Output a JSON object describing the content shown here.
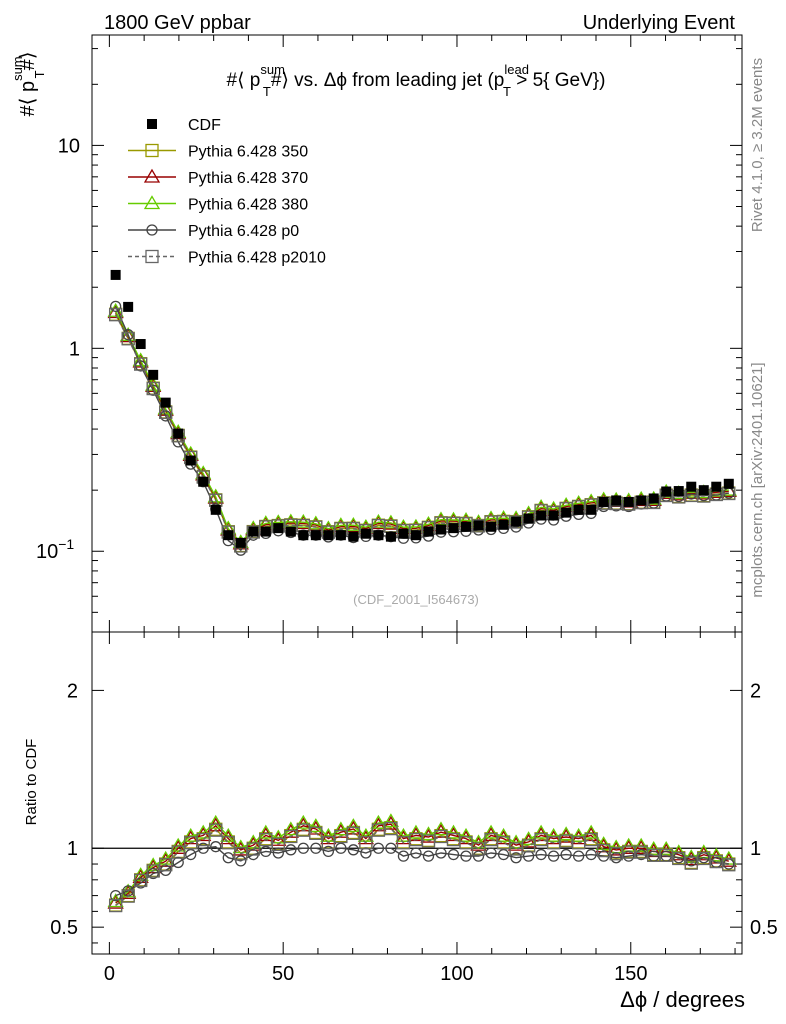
{
  "header": {
    "left_label": "1800 GeV ppbar",
    "right_label": "Underlying Event"
  },
  "side_labels": {
    "rivet": "Rivet 4.1.0, ≥ 3.2M events",
    "mcplots": "mcplots.cern.ch [arXiv:2401.10621]"
  },
  "analysis_id": "(CDF_2001_I564673)",
  "chart_data": [
    {
      "type": "scatter",
      "scale": "log",
      "title": "#⟨ p_T^sum #⟩ vs. Δϕ from leading jet (p_T^lead > 5{ GeV})",
      "title_parts": {
        "prefix": "#⟨ p",
        "sup1": "sum",
        "sub1": "T",
        "mid": "#⟩ vs. Δϕ from leading jet  (p",
        "sup2": "lead",
        "sub2": "T",
        "suffix": " > 5{ GeV})"
      },
      "ylabel": "#⟨ p_T^sum #⟩",
      "ylabel_parts": {
        "prefix": "#⟨ p",
        "sup": "sum",
        "sub": "T",
        "suffix": "#⟩"
      },
      "xlim": [
        -5,
        182
      ],
      "ylim": [
        0.04,
        35
      ],
      "yticks": [
        {
          "value": 0.1,
          "base": "10",
          "exp": "−1"
        },
        {
          "value": 1,
          "label": "1"
        },
        {
          "value": 10,
          "label": "10"
        }
      ],
      "legend": [
        {
          "name": "CDF",
          "color": "#000000",
          "marker": "filled-square",
          "line": "none"
        },
        {
          "name": "Pythia 6.428 350",
          "color": "#999900",
          "marker": "open-square",
          "line": "solid"
        },
        {
          "name": "Pythia 6.428 370",
          "color": "#990000",
          "marker": "open-triangle",
          "line": "solid"
        },
        {
          "name": "Pythia 6.428 380",
          "color": "#66cc00",
          "marker": "open-triangle",
          "line": "solid"
        },
        {
          "name": "Pythia 6.428 p0",
          "color": "#444444",
          "marker": "open-circle",
          "line": "solid"
        },
        {
          "name": "Pythia 6.428 p2010",
          "color": "#666666",
          "marker": "open-square",
          "line": "dashed"
        }
      ],
      "x": [
        1.8,
        5.4,
        9,
        12.6,
        16.2,
        19.8,
        23.4,
        27,
        30.6,
        34.2,
        37.8,
        41.4,
        45,
        48.6,
        52.2,
        55.8,
        59.4,
        63,
        66.6,
        70.2,
        73.8,
        77.4,
        81,
        84.6,
        88.2,
        91.8,
        95.4,
        99,
        102.6,
        106.2,
        109.8,
        113.4,
        117,
        120.6,
        124.2,
        127.8,
        131.4,
        135,
        138.6,
        142.2,
        145.8,
        149.4,
        153,
        156.6,
        160.2,
        163.8,
        167.4,
        171,
        174.6,
        178.2
      ],
      "cdf": [
        2.3,
        1.6,
        1.05,
        0.74,
        0.54,
        0.38,
        0.28,
        0.22,
        0.16,
        0.12,
        0.11,
        0.125,
        0.125,
        0.13,
        0.125,
        0.12,
        0.12,
        0.12,
        0.12,
        0.118,
        0.122,
        0.12,
        0.118,
        0.122,
        0.12,
        0.125,
        0.128,
        0.13,
        0.132,
        0.134,
        0.132,
        0.135,
        0.14,
        0.145,
        0.15,
        0.15,
        0.155,
        0.16,
        0.16,
        0.175,
        0.178,
        0.175,
        0.178,
        0.182,
        0.197,
        0.198,
        0.208,
        0.2,
        0.208,
        0.215
      ],
      "ratio_350": [
        0.64,
        0.7,
        0.8,
        0.86,
        0.9,
        0.98,
        1.04,
        1.06,
        1.12,
        1.04,
        0.97,
        1.0,
        1.06,
        1.03,
        1.08,
        1.12,
        1.1,
        1.04,
        1.08,
        1.1,
        1.04,
        1.12,
        1.13,
        1.04,
        1.06,
        1.05,
        1.08,
        1.06,
        1.04,
        1.0,
        1.06,
        1.04,
        1.0,
        1.02,
        1.06,
        1.04,
        1.05,
        1.04,
        1.06,
        0.99,
        0.97,
        0.98,
        0.98,
        0.96,
        0.96,
        0.94,
        0.91,
        0.94,
        0.92,
        0.9
      ],
      "ratio_p0": [
        0.7,
        0.73,
        0.78,
        0.84,
        0.86,
        0.91,
        0.96,
        1.0,
        1.01,
        0.94,
        0.92,
        0.96,
        0.98,
        0.97,
        0.99,
        1.0,
        1.0,
        0.98,
        1.0,
        0.99,
        0.97,
        1.0,
        1.0,
        0.95,
        0.97,
        0.95,
        0.97,
        0.96,
        0.95,
        0.95,
        0.97,
        0.96,
        0.94,
        0.95,
        0.96,
        0.95,
        0.96,
        0.95,
        0.96,
        0.95,
        0.94,
        0.95,
        0.96,
        0.95,
        0.95,
        0.94,
        0.92,
        0.94,
        0.91,
        0.9
      ]
    },
    {
      "type": "scatter",
      "scale": "linear",
      "ylabel": "Ratio to CDF",
      "xlabel": "Δϕ / degrees",
      "xlim": [
        -5,
        182
      ],
      "ylim": [
        0.33,
        2.37
      ],
      "yticks": [
        0.5,
        1,
        2
      ],
      "xticks": [
        0,
        50,
        100,
        150
      ],
      "reference": 1
    }
  ]
}
